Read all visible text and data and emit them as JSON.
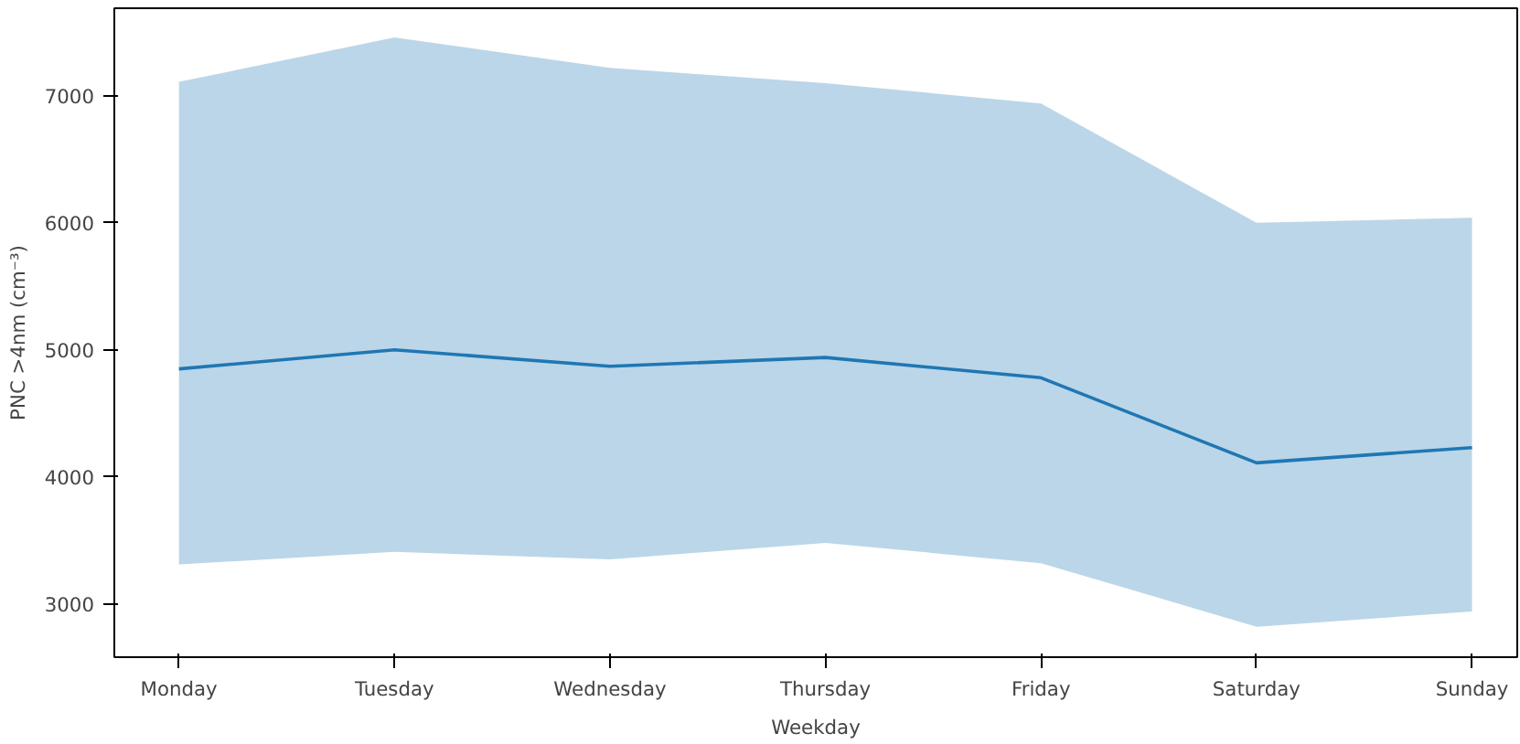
{
  "chart_data": {
    "type": "line",
    "xlabel": "Weekday",
    "ylabel": "PNC >4nm (cm⁻³)",
    "categories": [
      "Monday",
      "Tuesday",
      "Wednesday",
      "Thursday",
      "Friday",
      "Saturday",
      "Sunday"
    ],
    "series": [
      {
        "color": "#1f77b4",
        "values": [
          4850,
          5000,
          4870,
          4940,
          4780,
          4110,
          4230
        ],
        "lower": [
          3310,
          3410,
          3350,
          3480,
          3320,
          2820,
          2940
        ],
        "upper": [
          7110,
          7460,
          7220,
          7100,
          6940,
          6000,
          6040
        ]
      }
    ],
    "ylim": [
      2580,
      7690
    ],
    "yticks": [
      3000,
      4000,
      5000,
      6000,
      7000
    ],
    "grid": false,
    "line_style": "solid",
    "marker": "none"
  }
}
